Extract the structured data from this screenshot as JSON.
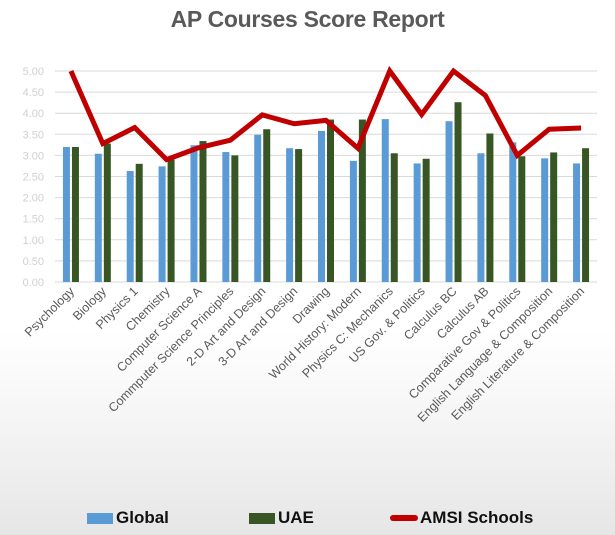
{
  "chart_data": {
    "type": "bar",
    "title": "AP Courses Score Report",
    "xlabel": "",
    "ylabel": "",
    "ylim": [
      0,
      5
    ],
    "yticks": [
      "0.00",
      "0.50",
      "1.00",
      "1.50",
      "2.00",
      "2.50",
      "3.00",
      "3.50",
      "4.00",
      "4.50",
      "5.00"
    ],
    "grid": true,
    "legend_position": "bottom",
    "categories": [
      "Psychology",
      "Biology",
      "Physics 1",
      "Chemistry",
      "Computer Science A",
      "Commputer Science Principles",
      "2-D Art and Design",
      "3-D Art and Design",
      "Drawing",
      "World History: Modern",
      "Physics C: Mechanics",
      "US Gov. & Politics",
      "Calculus BC",
      "Calculus AB",
      "Comparative Gov & Politics",
      "English Language & Composition",
      "English Literature & Composition"
    ],
    "series": [
      {
        "name": "Global",
        "type": "bar",
        "color": "#5B9BD5",
        "values": [
          3.2,
          3.04,
          2.63,
          2.74,
          3.24,
          3.08,
          3.49,
          3.17,
          3.58,
          2.87,
          3.86,
          2.81,
          3.81,
          3.05,
          3.31,
          2.93,
          2.81
        ]
      },
      {
        "name": "UAE",
        "type": "bar",
        "color": "#375623",
        "values": [
          3.2,
          3.28,
          2.8,
          2.9,
          3.34,
          3.0,
          3.62,
          3.15,
          3.85,
          3.85,
          3.05,
          2.92,
          4.26,
          3.52,
          2.98,
          3.07,
          3.17
        ]
      },
      {
        "name": "AMSI Schools",
        "type": "line",
        "color": "#C00000",
        "values": [
          5.0,
          3.28,
          3.66,
          2.9,
          3.18,
          3.36,
          3.96,
          3.75,
          3.83,
          3.17,
          5.0,
          3.97,
          5.0,
          4.42,
          3.0,
          3.62,
          3.65
        ]
      }
    ]
  },
  "colors": {
    "global": "#5B9BD5",
    "uae": "#375623",
    "amsi": "#C00000",
    "gridline": "#D9D9D9",
    "axis_label": "#D0D0D0",
    "category_label": "#595959",
    "title": "#595959"
  },
  "legend": {
    "items": [
      {
        "label": "Global"
      },
      {
        "label": "UAE"
      },
      {
        "label": "AMSI Schools"
      }
    ]
  }
}
